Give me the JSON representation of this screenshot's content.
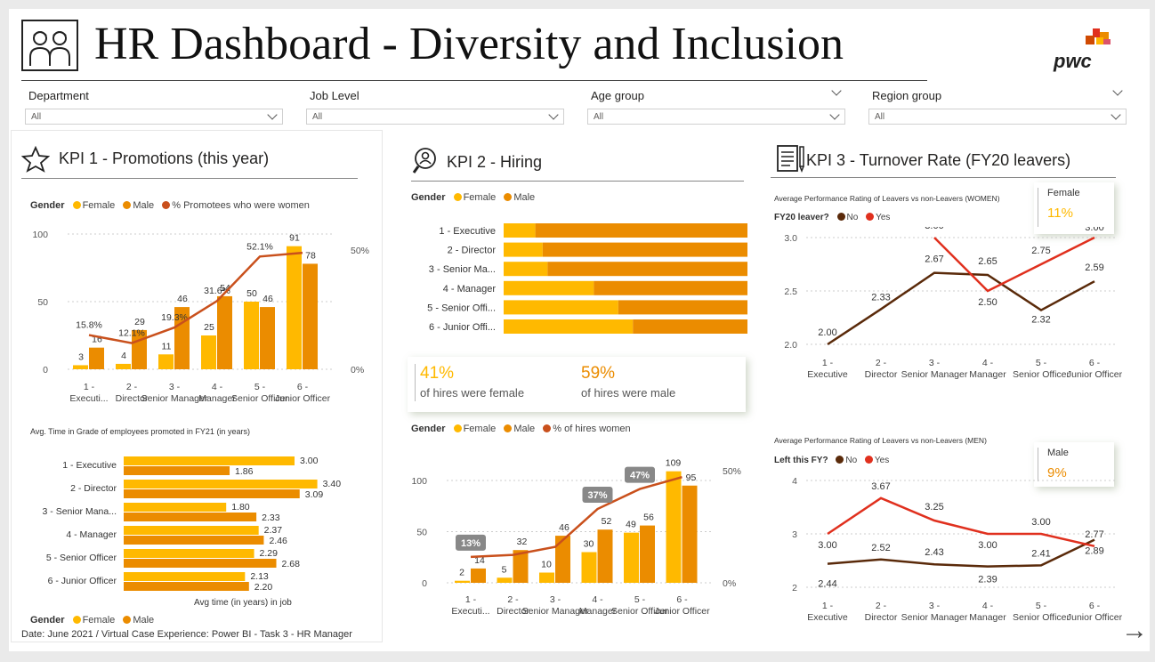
{
  "header": {
    "title": "HR Dashboard - Diversity and Inclusion",
    "logo_text": "pwc"
  },
  "slicers": [
    {
      "label": "Department",
      "value": "All"
    },
    {
      "label": "Job Level",
      "value": "All"
    },
    {
      "label": "Age group",
      "value": "All"
    },
    {
      "label": "Region group",
      "value": "All"
    }
  ],
  "colors": {
    "female": "#FFB900",
    "male": "#EB8C00",
    "line": "#C9501C",
    "dark": "#5A2A0A",
    "red": "#E0301E"
  },
  "kpi1": {
    "title": "KPI 1 - Promotions (this year)",
    "legend": {
      "title": "Gender",
      "female": "Female",
      "male": "Male",
      "pct": "% Promotees who were women"
    },
    "subtitle": "Avg. Time in Grade of employees promoted in FY21 (in years)",
    "bar_axis_title": "Avg time (in years) in job",
    "legend2": {
      "title": "Gender",
      "female": "Female",
      "male": "Male"
    }
  },
  "kpi2": {
    "title": "KPI 2 - Hiring",
    "legend": {
      "title": "Gender",
      "female": "Female",
      "male": "Male"
    },
    "card_female": {
      "value": "41%",
      "label": "of hires were female"
    },
    "card_male": {
      "value": "59%",
      "label": "of hires were male"
    },
    "legend2": {
      "title": "Gender",
      "female": "Female",
      "male": "Male",
      "pct": "% of hires women"
    }
  },
  "kpi3": {
    "title": "KPI 3 - Turnover Rate (FY20 leavers)",
    "women_title": "Average Performance Rating of Leavers vs non-Leavers (WOMEN)",
    "women_legend": {
      "title": "FY20 leaver?",
      "no": "No",
      "yes": "Yes"
    },
    "women_card": {
      "label": "Female",
      "value": "11%"
    },
    "men_title": "Average Performance Rating of Leavers vs non-Leavers (MEN)",
    "men_legend": {
      "title": "Left this FY?",
      "no": "No",
      "yes": "Yes"
    },
    "men_card": {
      "label": "Male",
      "value": "9%"
    }
  },
  "footer": "Date: June 2021 / Virtual Case Experience: Power BI - Task 3 - HR Manager",
  "chart_data": [
    {
      "id": "promotions",
      "type": "bar",
      "categories": [
        "1 - Executi...",
        "2 - Director",
        "3 - Senior Manager",
        "4 - Manager",
        "5 - Senior Officer",
        "6 - Junior Officer"
      ],
      "series": [
        {
          "name": "Female",
          "values": [
            3,
            4,
            11,
            25,
            50,
            91
          ]
        },
        {
          "name": "Male",
          "values": [
            16,
            29,
            46,
            54,
            46,
            78
          ]
        },
        {
          "name": "% Promotees who were women",
          "values": [
            15.8,
            12.1,
            19.3,
            31.6,
            52.1,
            53.8
          ]
        }
      ],
      "pct_labels": [
        "15.8%",
        "12.1%",
        "19.3%",
        "31.6%",
        "52.1%",
        ""
      ],
      "y_ticks": [
        "100",
        "50",
        "0"
      ],
      "y2_ticks": [
        "50%",
        "0%"
      ],
      "ylim": [
        0,
        100
      ]
    },
    {
      "id": "time_in_grade",
      "type": "bar",
      "categories": [
        "1 - Executive",
        "2 - Director",
        "3 - Senior Mana...",
        "4 - Manager",
        "5 - Senior Officer",
        "6 - Junior Officer"
      ],
      "series": [
        {
          "name": "Female",
          "values": [
            3.0,
            3.4,
            1.8,
            2.37,
            2.29,
            2.13
          ]
        },
        {
          "name": "Male",
          "values": [
            1.86,
            3.09,
            2.33,
            2.46,
            2.68,
            2.2
          ]
        }
      ]
    },
    {
      "id": "hiring_share",
      "type": "bar",
      "categories": [
        "1 - Executive",
        "2 - Director",
        "3 - Senior Ma...",
        "4 - Manager",
        "5 - Senior Offi...",
        "6 - Junior Offi..."
      ],
      "series": [
        {
          "name": "Female",
          "values": [
            0.13,
            0.16,
            0.18,
            0.37,
            0.47,
            0.53
          ]
        },
        {
          "name": "Male",
          "values": [
            0.87,
            0.84,
            0.82,
            0.63,
            0.53,
            0.47
          ]
        }
      ]
    },
    {
      "id": "hiring",
      "type": "bar",
      "categories": [
        "1 - Executi...",
        "2 - Director",
        "3 - Senior Manager",
        "4 - Manager",
        "5 - Senior Officer",
        "6 - Junior Officer"
      ],
      "series": [
        {
          "name": "Female",
          "values": [
            2,
            5,
            10,
            30,
            49,
            109
          ]
        },
        {
          "name": "Male",
          "values": [
            14,
            32,
            46,
            52,
            56,
            95
          ]
        },
        {
          "name": "% of hires women",
          "values": [
            13,
            14,
            18,
            37,
            47,
            53
          ]
        }
      ],
      "callouts": [
        "13%",
        "37%",
        "47%"
      ],
      "y_ticks": [
        "100",
        "50",
        "0"
      ],
      "y2_ticks": [
        "50%",
        "0%"
      ]
    },
    {
      "id": "women_rating",
      "type": "line",
      "categories": [
        "1 - Executive",
        "2 - Director",
        "3 - Senior Manager",
        "4 - Manager",
        "5 - Senior Officer",
        "6 - Junior Officer"
      ],
      "series": [
        {
          "name": "No",
          "values": [
            2.0,
            2.33,
            2.67,
            2.65,
            2.32,
            2.59
          ]
        },
        {
          "name": "Yes",
          "values": [
            null,
            null,
            3.0,
            2.5,
            2.75,
            3.0
          ]
        }
      ],
      "y_ticks": [
        "3.0",
        "2.5",
        "2.0"
      ],
      "ylim": [
        2.0,
        3.0
      ]
    },
    {
      "id": "men_rating",
      "type": "line",
      "categories": [
        "1 - Executive",
        "2 - Director",
        "3 - Senior Manager",
        "4 - Manager",
        "5 - Senior Officer",
        "6 - Junior Officer"
      ],
      "series": [
        {
          "name": "No",
          "values": [
            2.44,
            2.52,
            2.43,
            2.39,
            2.41,
            2.89
          ]
        },
        {
          "name": "Yes",
          "values": [
            3.0,
            3.67,
            3.25,
            3.0,
            3.0,
            2.77
          ]
        }
      ],
      "y_ticks": [
        "4",
        "3",
        "2"
      ],
      "ylim": [
        2,
        4
      ]
    }
  ]
}
